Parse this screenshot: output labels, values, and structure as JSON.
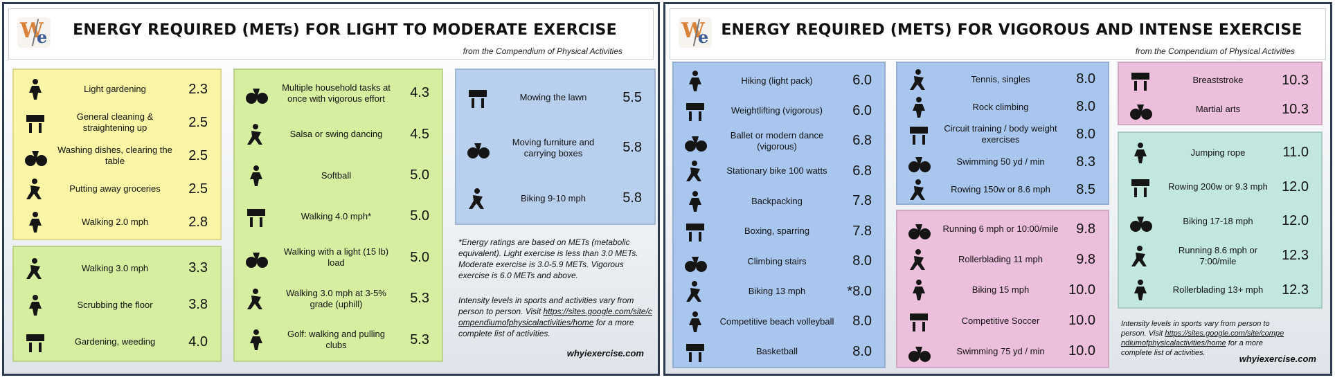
{
  "panels": [
    {
      "logo": {
        "left": "W",
        "right": "e"
      },
      "title": "ENERGY REQUIRED (METs) FOR LIGHT TO MODERATE EXERCISE",
      "subtitle": "from the Compendium of Physical Activities",
      "boxes": [
        {
          "items": [
            {
              "label": "Light gardening",
              "value": "2.3"
            },
            {
              "label": "General cleaning & straightening up",
              "value": "2.5"
            },
            {
              "label": "Washing dishes, clearing the table",
              "value": "2.5"
            },
            {
              "label": "Putting away groceries",
              "value": "2.5"
            },
            {
              "label": "Walking 2.0 mph",
              "value": "2.8"
            }
          ]
        },
        {
          "items": [
            {
              "label": "Walking 3.0 mph",
              "value": "3.3"
            },
            {
              "label": "Scrubbing the floor",
              "value": "3.8"
            },
            {
              "label": "Gardening, weeding",
              "value": "4.0"
            }
          ]
        },
        {
          "items": [
            {
              "label": "Multiple household tasks at once with vigorous effort",
              "value": "4.3"
            },
            {
              "label": "Salsa or swing dancing",
              "value": "4.5"
            },
            {
              "label": "Softball",
              "value": "5.0"
            },
            {
              "label": "Walking 4.0 mph*",
              "value": "5.0"
            },
            {
              "label": "Walking with a light (15 lb) load",
              "value": "5.0"
            },
            {
              "label": "Walking 3.0 mph at 3-5% grade (uphill)",
              "value": "5.3"
            },
            {
              "label": "Golf: walking and pulling clubs",
              "value": "5.3"
            }
          ]
        },
        {
          "items": [
            {
              "label": "Mowing the lawn",
              "value": "5.5"
            },
            {
              "label": "Moving furniture and carrying boxes",
              "value": "5.8"
            },
            {
              "label": "Biking 9-10 mph",
              "value": "5.8"
            }
          ]
        }
      ],
      "notes": [
        {
          "before": "*Energy ratings are based on METs (metabolic equivalent). Light exercise is less than 3.0 METs.  Moderate exercise is 3.0-5.9 METs. Vigorous exercise is 6.0 METs and above."
        },
        {
          "before": "Intensity levels in sports and activities vary from person to person.  Visit ",
          "link": "https://sites.google.com/site/compendiumofphysicalactivities/home",
          "after": " for a more complete list of activities."
        }
      ],
      "footer": "whyiexercise.com"
    },
    {
      "logo": {
        "left": "W",
        "right": "e"
      },
      "title": "ENERGY REQUIRED (METS) FOR VIGOROUS AND INTENSE EXERCISE",
      "subtitle": "from the Compendium of Physical Activities",
      "boxes": [
        {
          "items": [
            {
              "label": "Hiking (light pack)",
              "value": "6.0"
            },
            {
              "label": "Weightlifting (vigorous)",
              "value": "6.0"
            },
            {
              "label": "Ballet or modern dance (vigorous)",
              "value": "6.8"
            },
            {
              "label": "Stationary bike 100 watts",
              "value": "6.8"
            },
            {
              "label": "Backpacking",
              "value": "7.8"
            },
            {
              "label": "Boxing, sparring",
              "value": "7.8"
            },
            {
              "label": "Climbing stairs",
              "value": "8.0"
            },
            {
              "label": "Biking 13 mph",
              "value": "*8.0"
            },
            {
              "label": "Competitive beach volleyball",
              "value": "8.0"
            },
            {
              "label": "Basketball",
              "value": "8.0"
            }
          ]
        },
        {
          "items": [
            {
              "label": "Tennis, singles",
              "value": "8.0"
            },
            {
              "label": "Rock climbing",
              "value": "8.0"
            },
            {
              "label": "Circuit training / body weight exercises",
              "value": "8.0"
            },
            {
              "label": "Swimming 50 yd / min",
              "value": "8.3"
            },
            {
              "label": "Rowing 150w or 8.6 mph",
              "value": "8.5"
            }
          ]
        },
        {
          "items": [
            {
              "label": "Running 6 mph or 10:00/mile",
              "value": "9.8"
            },
            {
              "label": "Rollerblading 11 mph",
              "value": "9.8"
            },
            {
              "label": "Biking 15 mph",
              "value": "10.0"
            },
            {
              "label": "Competitive Soccer",
              "value": "10.0"
            },
            {
              "label": "Swimming 75 yd / min",
              "value": "10.0"
            }
          ]
        },
        {
          "items": [
            {
              "label": "Breaststroke",
              "value": "10.3"
            },
            {
              "label": "Martial arts",
              "value": "10.3"
            }
          ]
        },
        {
          "items": [
            {
              "label": "Jumping rope",
              "value": "11.0"
            },
            {
              "label": "Rowing 200w or 9.3 mph",
              "value": "12.0"
            },
            {
              "label": "Biking 17-18 mph",
              "value": "12.0"
            },
            {
              "label": "Running 8.6 mph or 7:00/mile",
              "value": "12.3"
            },
            {
              "label": "Rollerblading 13+ mph",
              "value": "12.3"
            }
          ]
        }
      ],
      "notes": [
        {
          "before": "Intensity levels in sports vary from person to person.  Visit ",
          "link": "https://sites.google.com/site/compendiumofphysicalactivities/home",
          "after": " for a more complete list of activities."
        }
      ],
      "footer": "whyiexercise.com"
    }
  ]
}
